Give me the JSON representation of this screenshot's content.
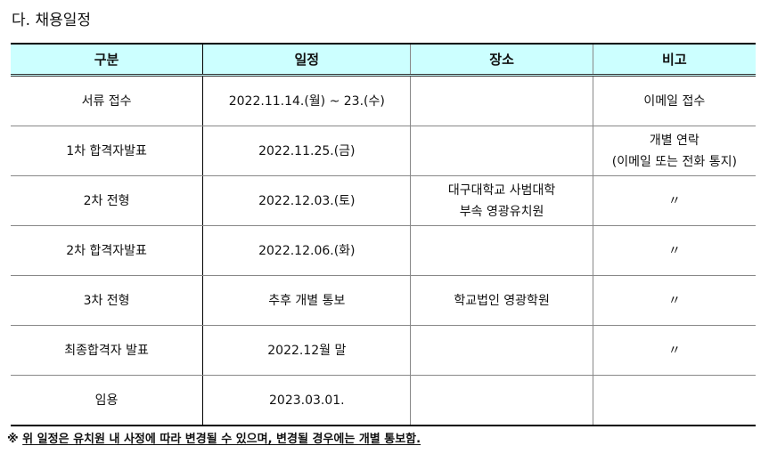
{
  "title": "다. 채용일정",
  "headers": [
    "구분",
    "일정",
    "장소",
    "비고"
  ],
  "rows": [
    [
      "서류 접수",
      "2022.11.14.(월) ~ 23.(수)",
      "",
      "이메일 접수"
    ],
    [
      "1차 합격자발표",
      "2022.11.25.(금)",
      "",
      "개별 연락\n(이메일 또는 전화 통지)"
    ],
    [
      "2차 전형",
      "2022.12.03.(토)",
      "대구대학교 사범대학\n부속 영광유치원",
      "〃"
    ],
    [
      "2차 합격자발표",
      "2022.12.06.(화)",
      "",
      "〃"
    ],
    [
      "3차 전형",
      "추후 개별 통보",
      "학교법인 영광학원",
      "〃"
    ],
    [
      "최종합격자 발표",
      "2022.12월 말",
      "",
      "〃"
    ],
    [
      "임용",
      "2023.03.01.",
      "",
      ""
    ]
  ],
  "note": {
    "mark": "※",
    "text": "위 일정은 유치원 내 사정에 따라 변경될 수 있으며, 변경될 경우에는 개별 통보함."
  }
}
